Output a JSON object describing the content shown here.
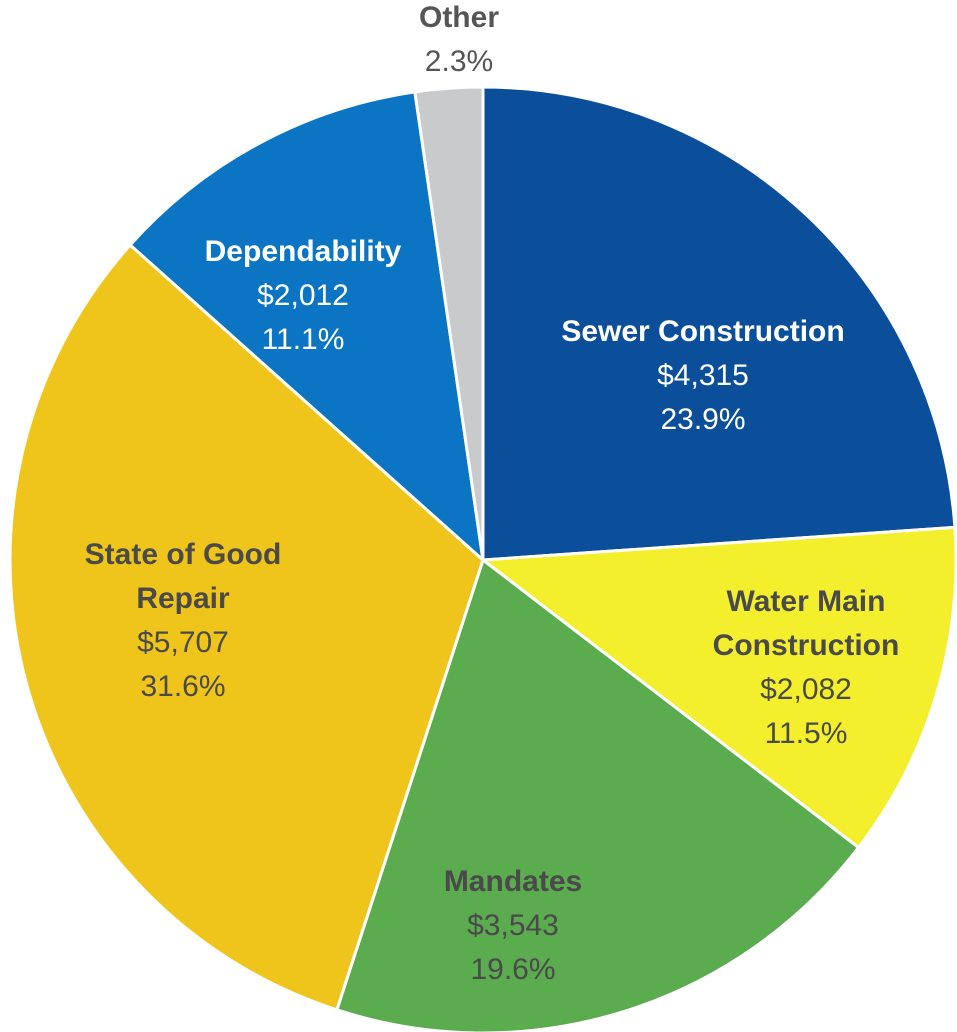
{
  "chart_data": {
    "type": "pie",
    "categories": [
      "Sewer Construction",
      "Water Main Construction",
      "Mandates",
      "State of Good Repair",
      "Dependability",
      "Other"
    ],
    "values": [
      23.9,
      11.5,
      19.6,
      31.6,
      11.1,
      2.3
    ],
    "value_labels": [
      "23.9%",
      "11.5%",
      "19.6%",
      "31.6%",
      "11.1%",
      "2.3%"
    ],
    "amount_labels": [
      "$4,315",
      "$2,082",
      "$3,543",
      "$5,707",
      "$2,012",
      null
    ],
    "colors": [
      "#0b4f9b",
      "#f3ef2c",
      "#5bab4f",
      "#f0c51b",
      "#0b74c3",
      "#c9cacc"
    ]
  }
}
